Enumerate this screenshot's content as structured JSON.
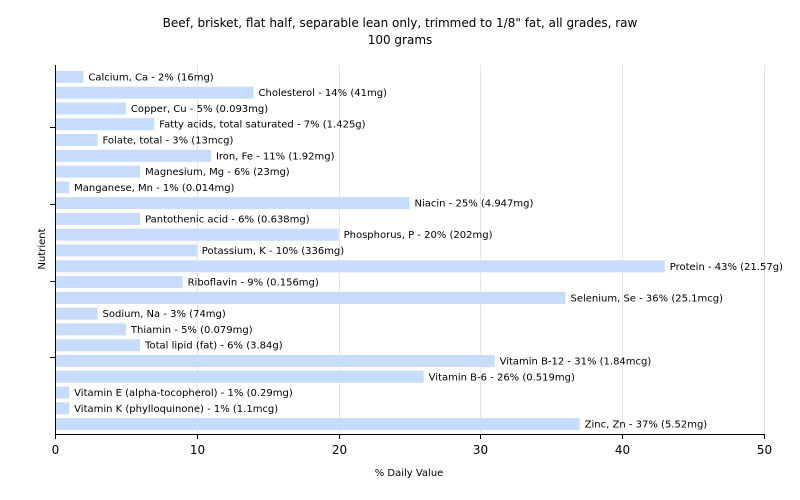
{
  "chart_data": {
    "type": "bar",
    "orientation": "horizontal",
    "title": "Beef, brisket, flat half, separable lean only, trimmed to 1/8\" fat, all grades, raw",
    "subtitle": "100 grams",
    "xlabel": "% Daily Value",
    "ylabel": "Nutrient",
    "xlim": [
      0,
      50
    ],
    "xticks": [
      0,
      10,
      20,
      30,
      40,
      50
    ],
    "grid": true,
    "bar_color": "#c6dcfa",
    "categories": [
      "Calcium, Ca",
      "Cholesterol",
      "Copper, Cu",
      "Fatty acids, total saturated",
      "Folate, total",
      "Iron, Fe",
      "Magnesium, Mg",
      "Manganese, Mn",
      "Niacin",
      "Pantothenic acid",
      "Phosphorus, P",
      "Potassium, K",
      "Protein",
      "Riboflavin",
      "Selenium, Se",
      "Sodium, Na",
      "Thiamin",
      "Total lipid (fat)",
      "Vitamin B-12",
      "Vitamin B-6",
      "Vitamin E (alpha-tocopherol)",
      "Vitamin K (phylloquinone)",
      "Zinc, Zn"
    ],
    "values": [
      2,
      14,
      5,
      7,
      3,
      11,
      6,
      1,
      25,
      6,
      20,
      10,
      43,
      9,
      36,
      3,
      5,
      6,
      31,
      26,
      1,
      1,
      37
    ],
    "labels": [
      "Calcium, Ca - 2% (16mg)",
      "Cholesterol - 14% (41mg)",
      "Copper, Cu - 5% (0.093mg)",
      "Fatty acids, total saturated - 7% (1.425g)",
      "Folate, total - 3% (13mcg)",
      "Iron, Fe - 11% (1.92mg)",
      "Magnesium, Mg - 6% (23mg)",
      "Manganese, Mn - 1% (0.014mg)",
      "Niacin - 25% (4.947mg)",
      "Pantothenic acid - 6% (0.638mg)",
      "Phosphorus, P - 20% (202mg)",
      "Potassium, K - 10% (336mg)",
      "Protein - 43% (21.57g)",
      "Riboflavin - 9% (0.156mg)",
      "Selenium, Se - 36% (25.1mcg)",
      "Sodium, Na - 3% (74mg)",
      "Thiamin - 5% (0.079mg)",
      "Total lipid (fat) - 6% (3.84g)",
      "Vitamin B-12 - 31% (1.84mcg)",
      "Vitamin B-6 - 26% (0.519mg)",
      "Vitamin E (alpha-tocopherol) - 1% (0.29mg)",
      "Vitamin K (phylloquinone) - 1% (1.1mcg)",
      "Zinc, Zn - 37% (5.52mg)"
    ]
  }
}
